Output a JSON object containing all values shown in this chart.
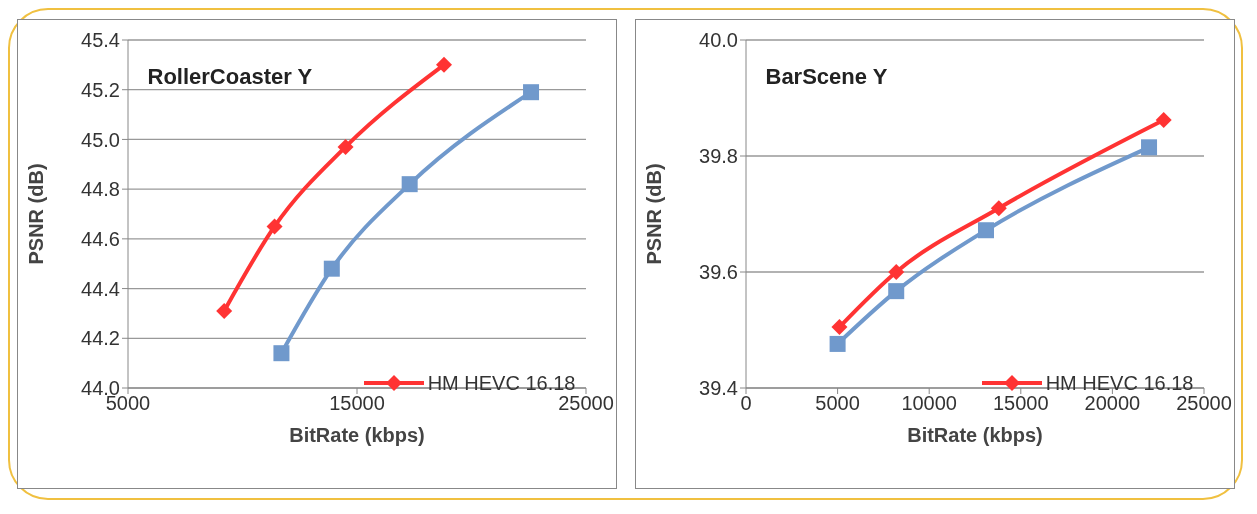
{
  "chart_data": [
    {
      "type": "line",
      "title": "RollerCoaster Y",
      "xlabel": "BitRate (kbps)",
      "ylabel": "PSNR (dB)",
      "xlim": [
        5000,
        25000
      ],
      "xticks": [
        5000,
        15000,
        25000
      ],
      "ylim": [
        44.0,
        45.4
      ],
      "yticks": [
        {
          "value": 44.0,
          "label": "44.0"
        },
        {
          "value": 44.2,
          "label": "44.2"
        },
        {
          "value": 44.4,
          "label": "44.4"
        },
        {
          "value": 44.6,
          "label": "44.6"
        },
        {
          "value": 44.8,
          "label": "44.8"
        },
        {
          "value": 45.0,
          "label": "45.0"
        },
        {
          "value": 45.2,
          "label": "45.2"
        },
        {
          "value": 45.4,
          "label": "45.4"
        }
      ],
      "grid": "y",
      "legend": "bottom right",
      "line_style": "solid",
      "series": [
        {
          "name": "HM HEVC 16.18",
          "color": "#ff3333",
          "marker": "diamond",
          "x": [
            9200,
            11400,
            14500,
            18800
          ],
          "values": [
            44.31,
            44.65,
            44.97,
            45.3
          ]
        },
        {
          "color": "#7099cc",
          "marker": "square",
          "x": [
            11700,
            13900,
            17300,
            22600
          ],
          "values": [
            44.14,
            44.48,
            44.82,
            45.19
          ]
        }
      ]
    },
    {
      "type": "line",
      "title": "BarScene Y",
      "xlabel": "BitRate (kbps)",
      "ylabel": "PSNR (dB)",
      "xlim": [
        0,
        25000
      ],
      "xticks": [
        0,
        5000,
        10000,
        15000,
        20000,
        25000
      ],
      "ylim": [
        39.4,
        40.0
      ],
      "yticks": [
        {
          "value": 39.4,
          "label": "39.4"
        },
        {
          "value": 39.6,
          "label": "39.6"
        },
        {
          "value": 39.8,
          "label": "39.8"
        },
        {
          "value": 40.0,
          "label": "40.0"
        }
      ],
      "grid": "y",
      "legend": "bottom right",
      "line_style": "solid",
      "series": [
        {
          "name": "HM HEVC 16.18",
          "color": "#ff3333",
          "marker": "diamond",
          "x": [
            5100,
            8200,
            13800,
            22800
          ],
          "values": [
            39.505,
            39.6,
            39.71,
            39.862
          ]
        },
        {
          "color": "#7099cc",
          "marker": "square",
          "x": [
            5000,
            8200,
            13100,
            22000
          ],
          "values": [
            39.476,
            39.567,
            39.672,
            39.815
          ]
        }
      ]
    }
  ]
}
